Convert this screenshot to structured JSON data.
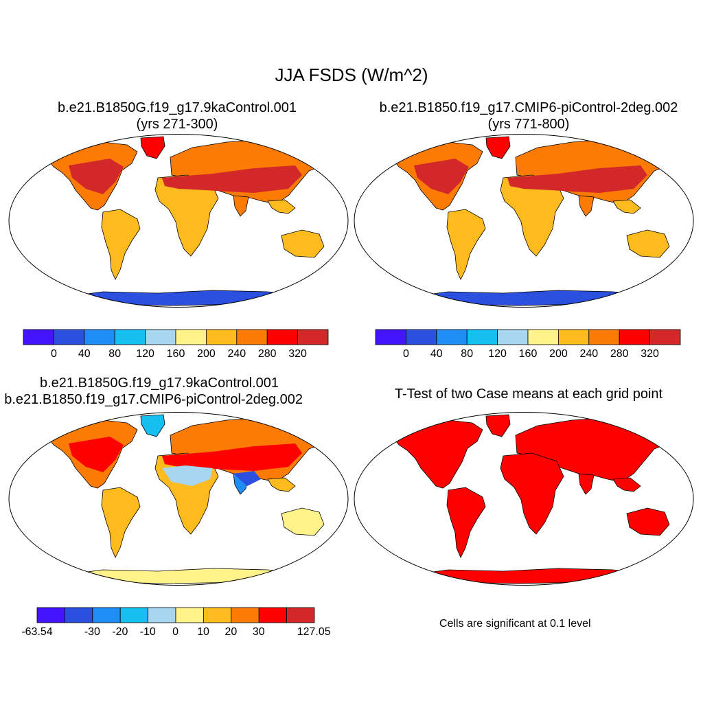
{
  "figure": {
    "title": "JJA FSDS (W/m^2)"
  },
  "panels": [
    {
      "title_line1": "b.e21.B1850G.f19_g17.9kaControl.001",
      "title_line2": "(yrs 271-300)",
      "colorbar": {
        "colors": [
          "#4414ff",
          "#2b50e0",
          "#1e8df5",
          "#15bff0",
          "#a6d6f0",
          "#fff38a",
          "#fdbb1e",
          "#fc7b05",
          "#ff0000",
          "#d3282a"
        ],
        "tick_labels": [
          "0",
          "40",
          "80",
          "120",
          "160",
          "200",
          "240",
          "280",
          "320"
        ]
      }
    },
    {
      "title_line1": "b.e21.B1850.f19_g17.CMIP6-piControl-2deg.002",
      "title_line2": "(yrs 771-800)",
      "colorbar": {
        "colors": [
          "#4414ff",
          "#2b50e0",
          "#1e8df5",
          "#15bff0",
          "#a6d6f0",
          "#fff38a",
          "#fdbb1e",
          "#fc7b05",
          "#ff0000",
          "#d3282a"
        ],
        "tick_labels": [
          "0",
          "40",
          "80",
          "120",
          "160",
          "200",
          "240",
          "280",
          "320"
        ]
      }
    },
    {
      "title_line1": "b.e21.B1850G.f19_g17.9kaControl.001",
      "title_line2": "- b.e21.B1850.f19_g17.CMIP6-piControl-2deg.002",
      "colorbar": {
        "colors": [
          "#4414ff",
          "#2b50e0",
          "#1e8df5",
          "#15bff0",
          "#a6d6f0",
          "#fff38a",
          "#fdbb1e",
          "#fc7b05",
          "#ff0000",
          "#d3282a"
        ],
        "tick_labels": [
          "-63.54",
          "-30",
          "-20",
          "-10",
          "0",
          "10",
          "20",
          "30",
          "127.05"
        ]
      }
    },
    {
      "title_line1": "T-Test of two Case means at each grid point",
      "note": "Cells are significant at 0.1 level",
      "fill_color": "#ff0000"
    }
  ]
}
